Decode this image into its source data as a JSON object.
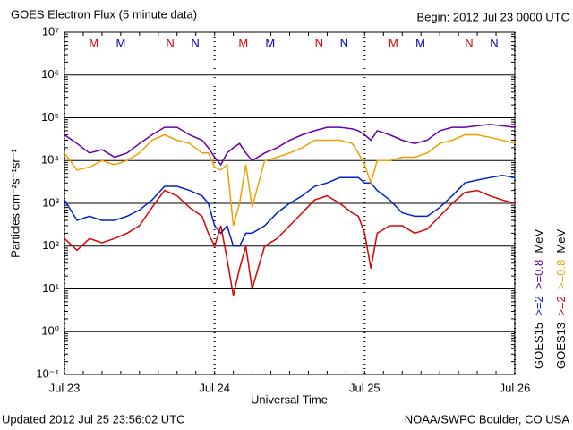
{
  "chart_data": {
    "type": "line",
    "title": "GOES Electron Flux (5 minute data)",
    "subtitle": "Begin: 2012 Jul 23 0000 UTC",
    "x_label": "Universal Time",
    "y_label": "Particles cm⁻²s⁻¹sr⁻¹",
    "footer_left": "Updated 2012 Jul 25 23:56:02 UTC",
    "footer_right": "NOAA/SWPC Boulder, CO USA",
    "log_scale": true,
    "grid": true,
    "threshold": 1000,
    "xlim": [
      0,
      72
    ],
    "xticks": [
      {
        "value": 0,
        "label": "Jul 23"
      },
      {
        "value": 24,
        "label": "Jul 24"
      },
      {
        "value": 48,
        "label": "Jul 25"
      },
      {
        "value": 72,
        "label": "Jul 26"
      }
    ],
    "ylim": [
      0.1,
      10000000
    ],
    "yticks": [
      {
        "value": 0.1,
        "label": "10⁻¹"
      },
      {
        "value": 1,
        "label": "10⁰"
      },
      {
        "value": 10,
        "label": "10¹"
      },
      {
        "value": 100,
        "label": "10²"
      },
      {
        "value": 1000,
        "label": "10³"
      },
      {
        "value": 10000,
        "label": "10⁴"
      },
      {
        "value": 100000,
        "label": "10⁵"
      },
      {
        "value": 1000000,
        "label": "10⁶"
      },
      {
        "value": 10000000,
        "label": "10⁷"
      }
    ],
    "legend_columns": [
      {
        "satellite": "GOES15",
        "unit": "MeV"
      },
      {
        "satellite": "GOES13",
        "unit": "MeV"
      }
    ],
    "markers": [
      {
        "label": "M",
        "x": 4.7,
        "color": "#dd0000"
      },
      {
        "label": "M",
        "x": 9.0,
        "color": "#0000cc"
      },
      {
        "label": "N",
        "x": 16.9,
        "color": "#dd0000"
      },
      {
        "label": "N",
        "x": 20.9,
        "color": "#0000cc"
      },
      {
        "label": "M",
        "x": 28.6,
        "color": "#dd0000"
      },
      {
        "label": "M",
        "x": 32.9,
        "color": "#0000cc"
      },
      {
        "label": "N",
        "x": 40.7,
        "color": "#dd0000"
      },
      {
        "label": "N",
        "x": 44.7,
        "color": "#0000cc"
      },
      {
        "label": "M",
        "x": 52.6,
        "color": "#dd0000"
      },
      {
        "label": "M",
        "x": 56.9,
        "color": "#0000cc"
      },
      {
        "label": "N",
        "x": 64.7,
        "color": "#dd0000"
      },
      {
        "label": "N",
        "x": 68.7,
        "color": "#0000cc"
      }
    ],
    "x": [
      0,
      2,
      4,
      6,
      8,
      10,
      12,
      14,
      16,
      18,
      20,
      22,
      23,
      24,
      25,
      26,
      27,
      28,
      29,
      30,
      32,
      34,
      36,
      38,
      40,
      42,
      44,
      46,
      47,
      48,
      49,
      50,
      52,
      54,
      56,
      58,
      60,
      62,
      64,
      66,
      68,
      70,
      72
    ],
    "series": [
      {
        "name": ">=2",
        "color": "#0022cc",
        "values": [
          1200,
          400,
          500,
          400,
          400,
          500,
          700,
          1200,
          2500,
          2500,
          2000,
          1500,
          1000,
          300,
          200,
          300,
          100,
          100,
          200,
          200,
          300,
          600,
          1000,
          1500,
          2500,
          3000,
          4000,
          4000,
          4000,
          3000,
          3000,
          2000,
          1200,
          600,
          500,
          500,
          800,
          1500,
          3000,
          3500,
          4000,
          4500,
          4000
        ]
      },
      {
        "name": ">=0.8",
        "color": "#6600aa",
        "values": [
          40000,
          25000,
          15000,
          18000,
          12000,
          15000,
          25000,
          40000,
          60000,
          60000,
          40000,
          30000,
          20000,
          12000,
          8000,
          15000,
          20000,
          25000,
          15000,
          10000,
          15000,
          20000,
          30000,
          40000,
          50000,
          60000,
          60000,
          55000,
          50000,
          40000,
          30000,
          50000,
          40000,
          30000,
          25000,
          30000,
          50000,
          60000,
          60000,
          65000,
          70000,
          65000,
          60000
        ]
      },
      {
        "name": ">=2",
        "color": "#dd0000",
        "values": [
          150,
          80,
          150,
          120,
          150,
          200,
          300,
          800,
          2000,
          1500,
          800,
          500,
          200,
          100,
          300,
          50,
          7,
          30,
          100,
          10,
          100,
          150,
          300,
          600,
          1200,
          1500,
          1000,
          600,
          500,
          200,
          30,
          200,
          300,
          300,
          200,
          250,
          500,
          1000,
          1800,
          2000,
          1500,
          1200,
          1000
        ]
      },
      {
        "name": ">=0.8",
        "color": "#eea000",
        "values": [
          15000,
          6000,
          7000,
          10000,
          8000,
          10000,
          15000,
          30000,
          40000,
          30000,
          25000,
          15000,
          15000,
          7000,
          6000,
          8000,
          300,
          1000,
          8000,
          800,
          10000,
          12000,
          15000,
          20000,
          30000,
          30000,
          30000,
          25000,
          15000,
          8000,
          3000,
          10000,
          10000,
          12000,
          12000,
          15000,
          25000,
          30000,
          40000,
          40000,
          35000,
          30000,
          25000
        ]
      }
    ]
  }
}
